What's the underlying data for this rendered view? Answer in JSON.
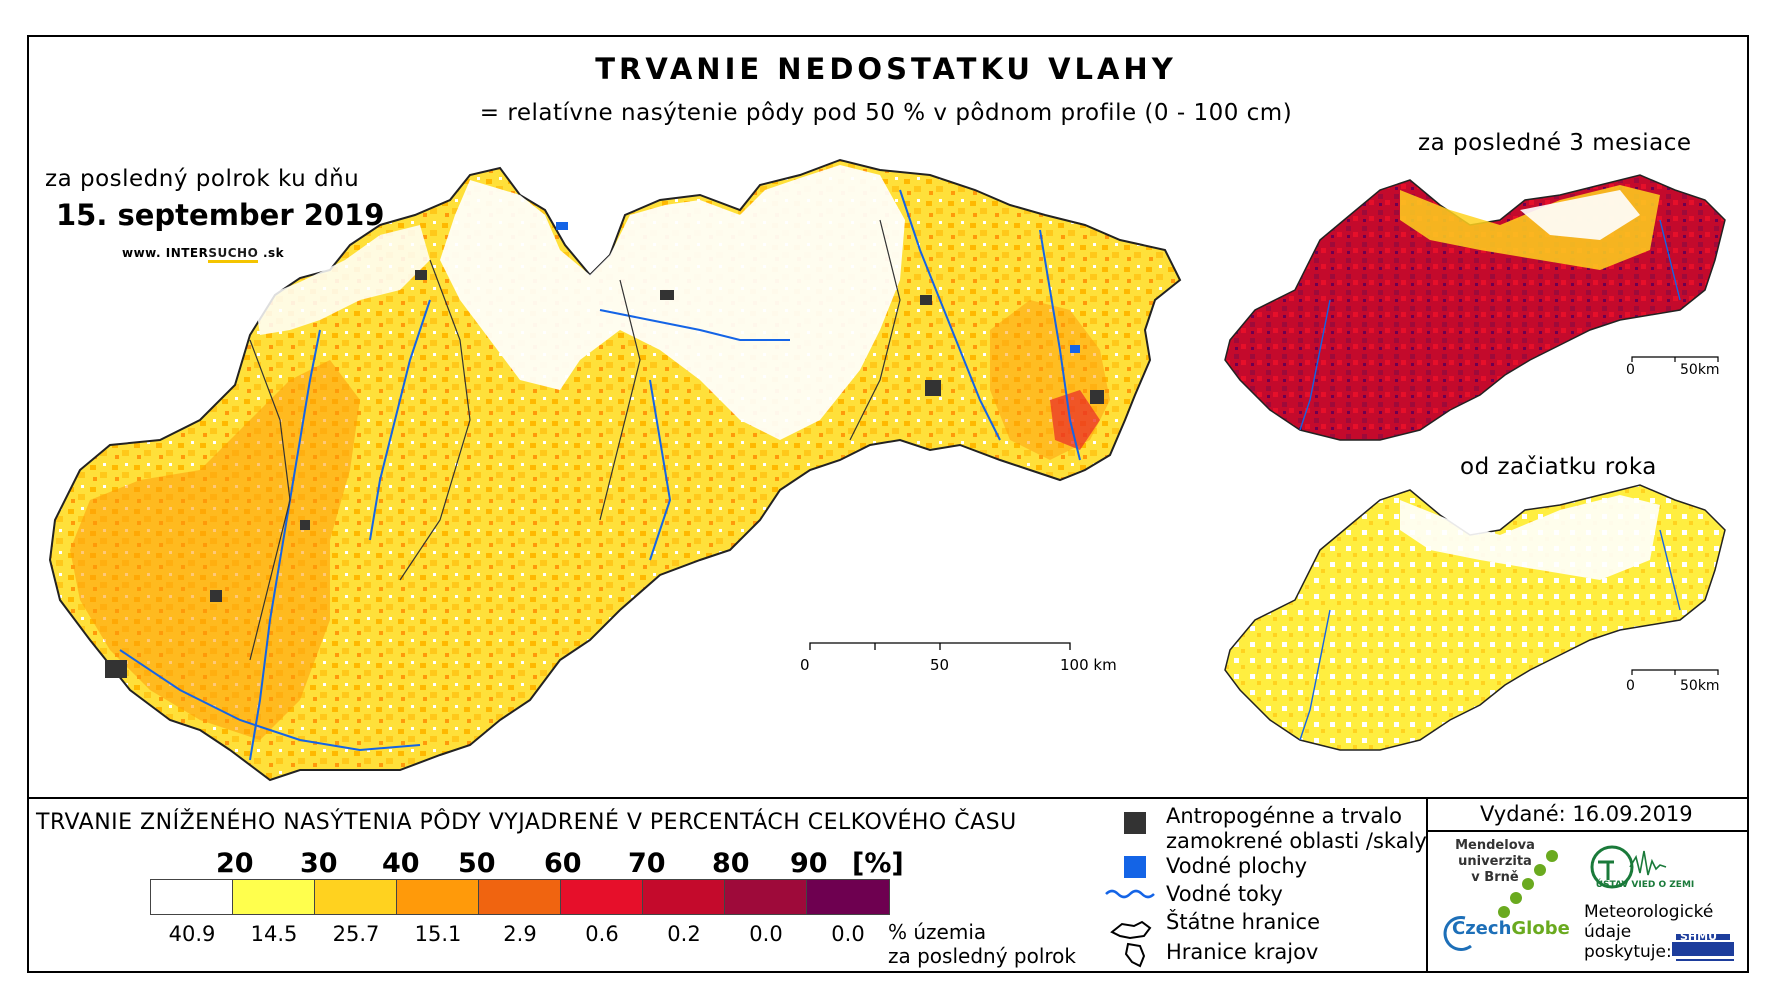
{
  "title": "TRVANIE NEDOSTATKU VLAHY",
  "subtitle": "= relatívne nasýtenie pôdy pod 50 % v pôdnom profile (0 - 100 cm)",
  "main_map": {
    "period_label": "za posledný polrok ku dňu",
    "date_label": "15. september 2019",
    "website": {
      "prefix": "www. INTER",
      "highlight": "SUCHO",
      "suffix": " .sk"
    },
    "scale": {
      "ticks": [
        "0",
        "50",
        "100 km"
      ]
    }
  },
  "inset_top": {
    "label": "za posledné 3 mesiace",
    "scale": {
      "ticks": [
        "0",
        "50km"
      ]
    }
  },
  "inset_bottom": {
    "label": "od začiatku roka",
    "scale": {
      "ticks": [
        "0",
        "50km"
      ]
    }
  },
  "legend": {
    "title": "TRVANIE ZNÍŽENÉHO NASÝTENIA PÔDY VYJADRENÉ V PERCENTÁCH CELKOVÉHO ČASU",
    "thresholds": [
      "20",
      "30",
      "40",
      "50",
      "60",
      "70",
      "80",
      "90",
      "[%]"
    ],
    "colors": [
      "#ffffff",
      "#ffff4d",
      "#ffd21f",
      "#ff9a0a",
      "#f06410",
      "#e60f2a",
      "#c40a2c",
      "#9e0a3a",
      "#6e0050"
    ],
    "percentages": [
      "40.9",
      "14.5",
      "25.7",
      "15.1",
      "2.9",
      "0.6",
      "0.2",
      "0.0",
      "0.0"
    ],
    "percent_label_line1": "% územia",
    "percent_label_line2": "za posledný polrok"
  },
  "key": {
    "anthropogenic": "Antropogénne a trvalo",
    "anthropogenic_line2": "zamokrené oblasti /skaly",
    "water_bodies": "Vodné plochy",
    "water_streams": "Vodné toky",
    "state_border": "Štátne hranice",
    "region_border": "Hranice krajov",
    "colors": {
      "anthropogenic": "#333333",
      "water_bodies": "#1464e6",
      "water_streams": "#1464e6"
    }
  },
  "issued": "Vydané: 16.09.2019",
  "logos": {
    "mendel_line1": "Mendelova",
    "mendel_line2": "univerzita",
    "mendel_line3": "v Brně",
    "czechglobe_a": "Czech",
    "czechglobe_b": "Globe",
    "ugv": "ÚSTAV VIED O ZEMI",
    "met_line1": "Meteorologické",
    "met_line2": "údaje",
    "met_line3": "poskytuje:",
    "shmu": "SHMÚ"
  }
}
